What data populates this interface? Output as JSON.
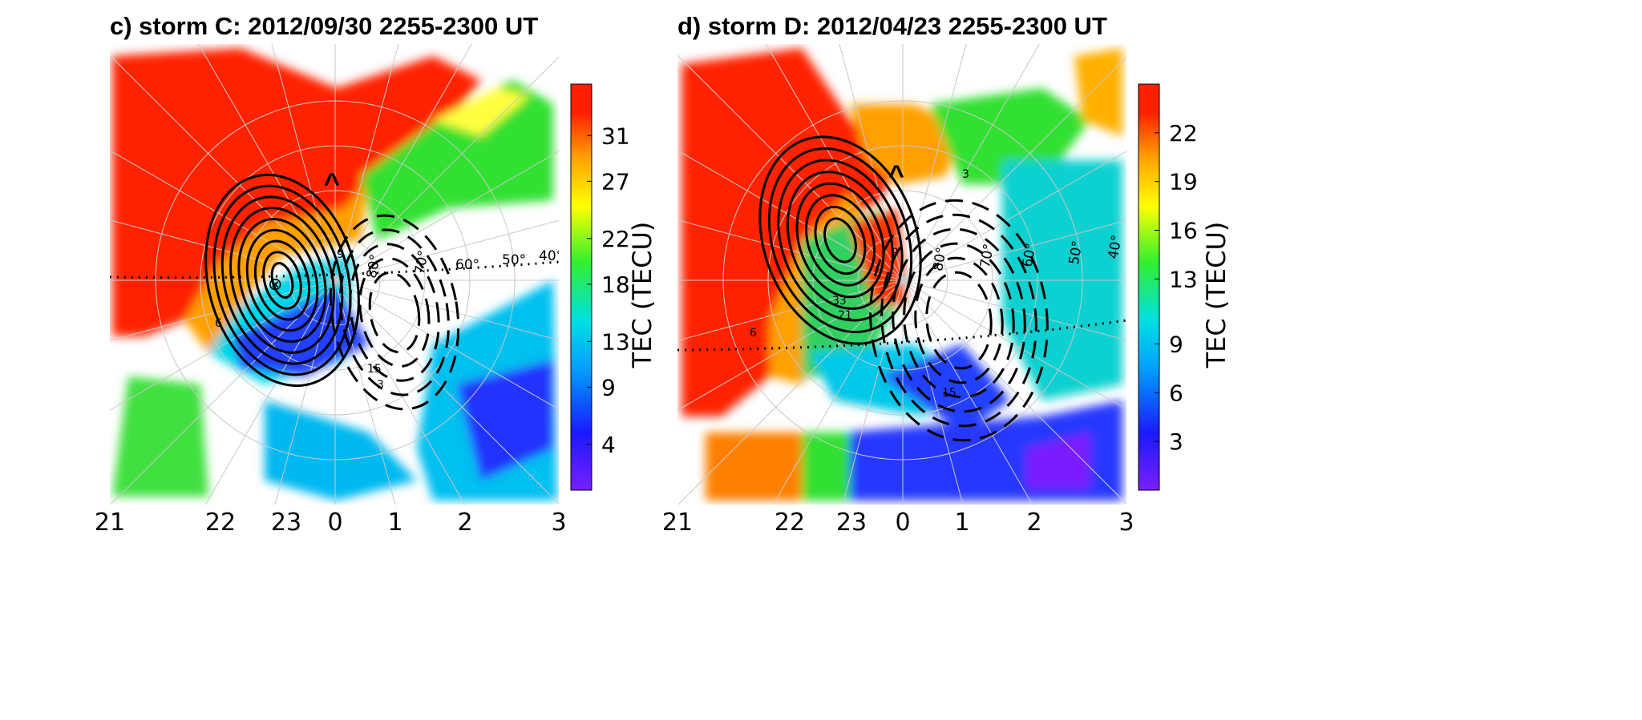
{
  "chart_data": [
    {
      "type": "heatmap",
      "title": "c)  storm C: 2012/09/30 2255-2300 UT",
      "xlabel": "",
      "x_ticks": [
        "21",
        "22",
        "23",
        "0",
        "1",
        "2",
        "3"
      ],
      "latitude_labels": [
        "80°",
        "70°",
        "60°",
        "50°",
        "40°"
      ],
      "contour_labels": [
        "6",
        "9",
        "3",
        "15",
        "3",
        "9"
      ],
      "markers": [
        "⊗",
        "^"
      ],
      "colorbar": {
        "label": "TEC (TECU)",
        "range": [
          0,
          35.5
        ],
        "ticks": [
          4,
          9,
          13,
          18,
          22,
          27,
          31
        ]
      },
      "projection": "polar",
      "contours": {
        "solid": "positive potential",
        "dashed": "negative potential"
      }
    },
    {
      "type": "heatmap",
      "title": "d)  storm D: 2012/04/23 2255-2300 UT",
      "xlabel": "",
      "x_ticks": [
        "21",
        "22",
        "23",
        "0",
        "1",
        "2",
        "3"
      ],
      "latitude_labels": [
        "80°",
        "70°",
        "60°",
        "50°",
        "40°"
      ],
      "contour_labels": [
        "6",
        "9",
        "33",
        "21",
        "15",
        "3"
      ],
      "markers": [
        "^"
      ],
      "colorbar": {
        "label": "TEC (TECU)",
        "range": [
          0,
          25
        ],
        "ticks": [
          3,
          6,
          9,
          13,
          16,
          19,
          22
        ]
      },
      "projection": "polar",
      "contours": {
        "solid": "positive potential",
        "dashed": "negative potential"
      }
    }
  ],
  "colors": {
    "colormap": [
      "#7a1fff",
      "#1a1aff",
      "#00a0ff",
      "#00e0e0",
      "#30f030",
      "#ffff00",
      "#ffa000",
      "#ff2000"
    ]
  }
}
